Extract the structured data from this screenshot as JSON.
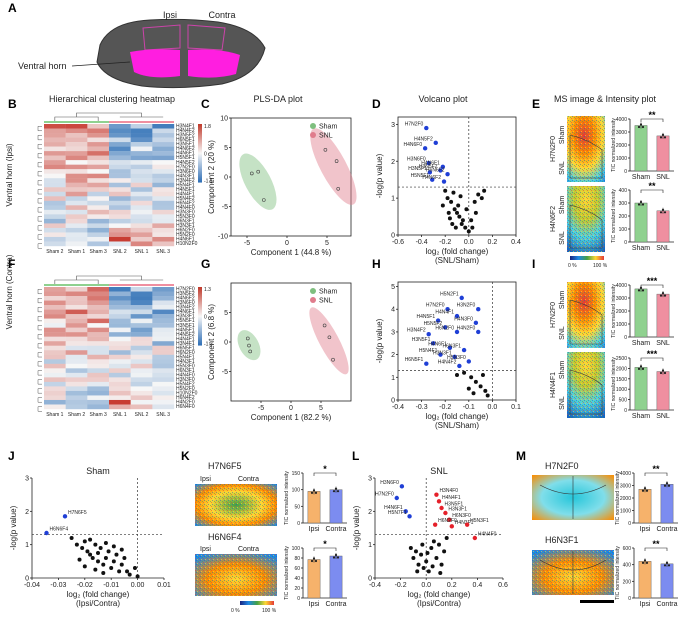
{
  "figure": {
    "panel_labels": [
      "A",
      "B",
      "C",
      "D",
      "E",
      "F",
      "G",
      "H",
      "I",
      "J",
      "K",
      "L",
      "M"
    ],
    "panel_a": {
      "ipsi": "Ipsi",
      "contra": "Contra",
      "region": "Ventral horn"
    },
    "titles": {
      "heatmap": "Hierarchical clustering heatmap",
      "plsda": "PLS-DA plot",
      "volcano": "Volcano plot",
      "ms": "MS image & Intensity plot"
    },
    "row_labels": {
      "ipsi": "Ventral horn (Ipsi)",
      "contra": "Ventral horn (Contra)"
    },
    "legend": {
      "sham": "Sham",
      "snl": "SNL",
      "ipsi": "Ipsi",
      "contra": "Contra"
    },
    "axes": {
      "y_tic": "TIC normalized intensity",
      "y_logp": "-log(p value)",
      "x_fc_main": "log₂ (fold change)",
      "x_snl_sham": "(SNL/Sham)",
      "x_ipsi_contra": "(Ipsi/Contra)"
    },
    "scale": {
      "min": "0 %",
      "max": "100 %"
    },
    "j_title": "Sham",
    "l_title": "SNL",
    "glycan_labels": {
      "e1": "H7N2F0",
      "e2": "H4N6F2",
      "i1": "H7N2F0",
      "i2": "H4N4F1",
      "k1": "H7N6F5",
      "k2": "H6N6F4",
      "m1": "H7N2F0",
      "m2": "H6N3F1"
    }
  },
  "chart_data": [
    {
      "id": "B",
      "type": "heatmap",
      "title": "Hierarchical clustering heatmap",
      "columns": [
        "Sham 2",
        "Sham 1",
        "Sham 3",
        "SNL 2",
        "SNL 1",
        "SNL 3"
      ],
      "rows": [
        "H3N4F1",
        "H4N4F2",
        "H3N5F2",
        "H6N5F1",
        "H3N5F1",
        "H4N6F2",
        "H4N6F1",
        "H5N5F1",
        "H4N5F2",
        "H7N2F0",
        "H3N6F0",
        "H4N3F1",
        "H3N4F2",
        "H5N4F1",
        "H4N5F1",
        "H4N4F1",
        "H5N4F2",
        "H6N4F2",
        "H4N4F0",
        "H3N3F0",
        "H5N3F0",
        "H6N3F1",
        "H3N3F1",
        "H6N2F0",
        "H5N2F0",
        "H4N6F1",
        "H10N2F0"
      ],
      "colorbar": {
        "max": "1.8",
        "mid": "0",
        "min": "-1.5"
      }
    },
    {
      "id": "F",
      "type": "heatmap",
      "columns": [
        "Sham 1",
        "Sham 2",
        "Sham 3",
        "SNL 1",
        "SNL 2",
        "SNL 3"
      ],
      "rows": [
        "H7N2F0",
        "H3N5F2",
        "H4N6F2",
        "H3N6F0",
        "H3N4F2",
        "H4N6F1",
        "H3N3F1",
        "H5N5F1",
        "H3N5F1",
        "H4N5F1",
        "H4N5F2",
        "H4N4F1",
        "H3N4F1",
        "H6N5F1",
        "H6N2F0",
        "H5N4F1",
        "H4N3F1",
        "H5N3F0",
        "H6N3F1",
        "H4N4F0",
        "H3N3F0",
        "H5N4F2",
        "H5N2F0",
        "H10N2F0",
        "H6N4F2",
        "H4N2F0",
        "H6N4F0"
      ],
      "colorbar": {
        "max": "1.3",
        "mid": "0",
        "min": "-1.3"
      }
    },
    {
      "id": "C",
      "type": "scatter",
      "title": "PLS-DA plot",
      "xlabel": "Component 1 (44.8 %)",
      "ylabel": "Component 2 (20 %)",
      "xlim": [
        -7,
        8
      ],
      "ylim": [
        -10,
        10
      ],
      "xticks": [
        -5,
        0,
        5
      ],
      "yticks": [
        -10,
        -5,
        0,
        5,
        10
      ],
      "series": [
        {
          "name": "Sham",
          "color": "#7fbf7f",
          "x": [
            -4.4,
            -3.6,
            -2.9
          ],
          "y": [
            0.6,
            0.9,
            -3.9
          ]
        },
        {
          "name": "SNL",
          "color": "#e07c8c",
          "x": [
            4.8,
            6.2,
            6.4
          ],
          "y": [
            4.6,
            2.7,
            -2.0
          ]
        }
      ]
    },
    {
      "id": "G",
      "type": "scatter",
      "xlabel": "Component 1 (82.2 %)",
      "ylabel": "Component 2 (6.8 %)",
      "xlim": [
        -10,
        10
      ],
      "ylim": [
        -10,
        10
      ],
      "xticks": [
        -5,
        0,
        5
      ],
      "yticks": [
        -5,
        0,
        5
      ],
      "series": [
        {
          "name": "Sham",
          "color": "#7fbf7f",
          "x": [
            -7.2,
            -7.0,
            -6.8
          ],
          "y": [
            0.6,
            -0.6,
            -1.6
          ]
        },
        {
          "name": "SNL",
          "color": "#e07c8c",
          "x": [
            5.6,
            6.4,
            7.0
          ],
          "y": [
            2.8,
            0.8,
            -3.0
          ]
        }
      ]
    },
    {
      "id": "D",
      "type": "scatter",
      "title": "Volcano plot",
      "xlabel": "log₂ (fold change)",
      "ylabel": "-log(p value)",
      "xlim": [
        -0.6,
        0.4
      ],
      "ylim": [
        0,
        3.2
      ],
      "xticks": [
        -0.6,
        -0.4,
        -0.2,
        0.0,
        0.2,
        0.4
      ],
      "yticks": [
        0,
        1,
        2,
        3
      ],
      "threshold_y": 1.3,
      "significant": [
        {
          "label": "H7N2F0",
          "x": -0.36,
          "y": 2.9
        },
        {
          "label": "H4N5F2",
          "x": -0.28,
          "y": 2.5
        },
        {
          "label": "H4N6F0",
          "x": -0.37,
          "y": 2.35
        },
        {
          "label": "H3N6F0",
          "x": -0.34,
          "y": 1.95
        },
        {
          "label": "H4N6F1",
          "x": -0.22,
          "y": 1.85
        },
        {
          "label": "H3N5F2",
          "x": -0.24,
          "y": 1.75
        },
        {
          "label": "H3N5F1",
          "x": -0.33,
          "y": 1.7
        },
        {
          "label": "H6N6F2",
          "x": -0.18,
          "y": 1.65
        },
        {
          "label": "H5N5F1",
          "x": -0.31,
          "y": 1.5
        },
        {
          "label": "H4N6F2",
          "x": -0.21,
          "y": 1.45
        }
      ],
      "other": [
        [
          -0.2,
          1.2
        ],
        [
          -0.18,
          1.0
        ],
        [
          -0.15,
          0.9
        ],
        [
          -0.12,
          0.7
        ],
        [
          -0.1,
          0.6
        ],
        [
          -0.08,
          0.5
        ],
        [
          -0.05,
          0.4
        ],
        [
          -0.03,
          0.2
        ],
        [
          0.0,
          0.1
        ],
        [
          -0.22,
          0.8
        ],
        [
          -0.17,
          0.6
        ],
        [
          -0.14,
          0.3
        ],
        [
          -0.09,
          0.8
        ],
        [
          -0.06,
          0.3
        ],
        [
          0.02,
          0.4
        ],
        [
          0.05,
          0.9
        ],
        [
          0.08,
          1.1
        ],
        [
          0.11,
          1.0
        ],
        [
          0.13,
          1.2
        ],
        [
          -0.11,
          0.2
        ],
        [
          -0.02,
          0.7
        ],
        [
          0.03,
          0.2
        ],
        [
          -0.16,
          0.45
        ],
        [
          -0.07,
          1.05
        ],
        [
          -0.13,
          1.15
        ],
        [
          0.06,
          0.6
        ]
      ]
    },
    {
      "id": "H",
      "type": "scatter",
      "xlabel": "log₂ (fold change)",
      "ylabel": "-log(p value)",
      "xlim": [
        -0.4,
        0.1
      ],
      "ylim": [
        0,
        5.2
      ],
      "xticks": [
        -0.4,
        -0.3,
        -0.2,
        -0.1,
        0.0,
        0.1
      ],
      "yticks": [
        0,
        1,
        2,
        3,
        4,
        5
      ],
      "threshold_y": 1.3,
      "significant": [
        {
          "label": "H5N2F1",
          "x": -0.13,
          "y": 4.5
        },
        {
          "label": "H7N2F0",
          "x": -0.19,
          "y": 4.0
        },
        {
          "label": "H3N2F0",
          "x": -0.06,
          "y": 4.0
        },
        {
          "label": "H4N4F1",
          "x": -0.15,
          "y": 3.7
        },
        {
          "label": "H4N5F1",
          "x": -0.23,
          "y": 3.5
        },
        {
          "label": "H4N3F0",
          "x": -0.07,
          "y": 3.4
        },
        {
          "label": "H5N5F2",
          "x": -0.2,
          "y": 3.2
        },
        {
          "label": "H6N2F0",
          "x": -0.15,
          "y": 3.0
        },
        {
          "label": "H3N4F2",
          "x": -0.27,
          "y": 2.9
        },
        {
          "label": "H4N2F0",
          "x": -0.06,
          "y": 3.0
        },
        {
          "label": "H3N5F1",
          "x": -0.25,
          "y": 2.5
        },
        {
          "label": "H4N6F1",
          "x": -0.18,
          "y": 2.3
        },
        {
          "label": "H6N3F1",
          "x": -0.12,
          "y": 2.2
        },
        {
          "label": "H5N4F1",
          "x": -0.22,
          "y": 2.0
        },
        {
          "label": "H3N3F1",
          "x": -0.16,
          "y": 1.9
        },
        {
          "label": "H5N3F0",
          "x": -0.1,
          "y": 1.7
        },
        {
          "label": "H6N5F1",
          "x": -0.28,
          "y": 1.6
        },
        {
          "label": "H4N4F2",
          "x": -0.14,
          "y": 1.5
        }
      ],
      "other": [
        [
          -0.12,
          1.2
        ],
        [
          -0.09,
          1.0
        ],
        [
          -0.07,
          0.8
        ],
        [
          -0.05,
          0.6
        ],
        [
          -0.03,
          0.4
        ],
        [
          -0.02,
          0.2
        ],
        [
          -0.15,
          1.1
        ],
        [
          -0.1,
          0.5
        ],
        [
          -0.04,
          1.1
        ],
        [
          -0.08,
          0.3
        ]
      ]
    },
    {
      "id": "J",
      "type": "scatter",
      "title": "Sham",
      "xlabel": "log₂ (fold change)",
      "ylabel": "-log(p value)",
      "xlim": [
        -0.04,
        0.01
      ],
      "ylim": [
        0,
        3
      ],
      "xticks": [
        -0.04,
        -0.03,
        -0.02,
        -0.01,
        0.0,
        0.01
      ],
      "yticks": [
        0,
        1,
        2,
        3
      ],
      "threshold_y": 1.3,
      "significant": [
        {
          "label": "H7N6F5",
          "x": -0.0275,
          "y": 1.85
        },
        {
          "label": "H6N6F4",
          "x": -0.0345,
          "y": 1.35
        }
      ],
      "other": [
        [
          -0.025,
          1.2
        ],
        [
          -0.023,
          1.0
        ],
        [
          -0.021,
          0.9
        ],
        [
          -0.02,
          1.1
        ],
        [
          -0.019,
          0.8
        ],
        [
          -0.018,
          0.7
        ],
        [
          -0.017,
          0.6
        ],
        [
          -0.016,
          1.0
        ],
        [
          -0.015,
          0.5
        ],
        [
          -0.014,
          0.9
        ],
        [
          -0.013,
          0.4
        ],
        [
          -0.012,
          0.6
        ],
        [
          -0.011,
          0.8
        ],
        [
          -0.01,
          0.3
        ],
        [
          -0.009,
          0.5
        ],
        [
          -0.008,
          0.7
        ],
        [
          -0.007,
          0.2
        ],
        [
          -0.006,
          0.4
        ],
        [
          -0.005,
          0.6
        ],
        [
          -0.004,
          0.2
        ],
        [
          -0.003,
          0.1
        ],
        [
          -0.001,
          0.3
        ],
        [
          0.0,
          0.05
        ],
        [
          -0.018,
          1.15
        ],
        [
          -0.015,
          0.75
        ],
        [
          -0.012,
          1.05
        ],
        [
          -0.022,
          0.55
        ],
        [
          -0.009,
          0.95
        ],
        [
          -0.013,
          0.15
        ],
        [
          -0.006,
          0.85
        ],
        [
          -0.02,
          0.35
        ],
        [
          -0.016,
          0.25
        ]
      ]
    },
    {
      "id": "L",
      "type": "scatter",
      "title": "SNL",
      "xlabel": "log₂ (fold change)",
      "ylabel": "-log(p value)",
      "xlim": [
        -0.4,
        0.6
      ],
      "ylim": [
        0,
        3
      ],
      "xticks": [
        -0.4,
        -0.2,
        0.0,
        0.2,
        0.4,
        0.6
      ],
      "yticks": [
        0,
        1,
        2,
        3
      ],
      "threshold_y": 1.3,
      "significant_down": [
        {
          "label": "H3N6F0",
          "x": -0.19,
          "y": 2.75
        },
        {
          "label": "H7N2F0",
          "x": -0.23,
          "y": 2.4
        },
        {
          "label": "H4N6F1",
          "x": -0.16,
          "y": 2.0
        },
        {
          "label": "H5N7F1",
          "x": -0.13,
          "y": 1.85
        }
      ],
      "significant_up": [
        {
          "label": "H3N4F0",
          "x": 0.08,
          "y": 2.5
        },
        {
          "label": "H4N4F1",
          "x": 0.1,
          "y": 2.3
        },
        {
          "label": "H3N5F1",
          "x": 0.12,
          "y": 2.1
        },
        {
          "label": "H3N3F1",
          "x": 0.15,
          "y": 1.95
        },
        {
          "label": "H6N3F0",
          "x": 0.18,
          "y": 1.75
        },
        {
          "label": "H6N2F0",
          "x": 0.07,
          "y": 1.6
        },
        {
          "label": "H4N3F1",
          "x": 0.2,
          "y": 1.55
        },
        {
          "label": "H5N3F1",
          "x": 0.32,
          "y": 1.6
        },
        {
          "label": "H4N4F0",
          "x": 0.38,
          "y": 1.2
        }
      ],
      "other": [
        [
          -0.12,
          0.9
        ],
        [
          -0.1,
          0.6
        ],
        [
          -0.08,
          0.8
        ],
        [
          -0.06,
          0.4
        ],
        [
          -0.04,
          0.7
        ],
        [
          -0.02,
          0.3
        ],
        [
          0.0,
          0.5
        ],
        [
          0.02,
          0.2
        ],
        [
          0.04,
          0.9
        ],
        [
          0.06,
          1.1
        ],
        [
          0.08,
          0.6
        ],
        [
          0.1,
          1.0
        ],
        [
          0.12,
          0.4
        ],
        [
          0.14,
          0.8
        ],
        [
          0.16,
          1.2
        ],
        [
          0.05,
          0.35
        ],
        [
          -0.03,
          1.0
        ],
        [
          0.01,
          0.75
        ],
        [
          0.11,
          0.15
        ],
        [
          -0.07,
          0.2
        ]
      ]
    },
    {
      "id": "E1",
      "type": "bar",
      "categories": [
        "Sham",
        "SNL"
      ],
      "values": [
        3500,
        2700
      ],
      "ylim": [
        0,
        4000
      ],
      "yticks": [
        0,
        1000,
        2000,
        3000,
        4000
      ],
      "significance": "**",
      "colors": [
        "#8fd18f",
        "#ef8fa0"
      ]
    },
    {
      "id": "E2",
      "type": "bar",
      "categories": [
        "Sham",
        "SNL"
      ],
      "values": [
        300,
        240
      ],
      "ylim": [
        0,
        400
      ],
      "yticks": [
        0,
        100,
        200,
        300,
        400
      ],
      "significance": "**",
      "colors": [
        "#8fd18f",
        "#ef8fa0"
      ]
    },
    {
      "id": "I1",
      "type": "bar",
      "categories": [
        "Sham",
        "SNL"
      ],
      "values": [
        3700,
        3300
      ],
      "ylim": [
        0,
        4000
      ],
      "yticks": [
        0,
        1000,
        2000,
        3000,
        4000
      ],
      "significance": "***",
      "colors": [
        "#8fd18f",
        "#ef8fa0"
      ]
    },
    {
      "id": "I2",
      "type": "bar",
      "categories": [
        "Sham",
        "SNL"
      ],
      "values": [
        2050,
        1850
      ],
      "ylim": [
        0,
        2500
      ],
      "yticks": [
        0,
        500,
        1000,
        1500,
        2000,
        2500
      ],
      "significance": "***",
      "colors": [
        "#8fd18f",
        "#ef8fa0"
      ]
    },
    {
      "id": "K1",
      "type": "bar",
      "categories": [
        "Ipsi",
        "Contra"
      ],
      "values": [
        95,
        100
      ],
      "ylim": [
        0,
        150
      ],
      "yticks": [
        0,
        50,
        100,
        150
      ],
      "significance": "*",
      "colors": [
        "#f6b26b",
        "#7c8cf0"
      ]
    },
    {
      "id": "K2",
      "type": "bar",
      "categories": [
        "Ipsi",
        "Contra"
      ],
      "values": [
        77,
        84
      ],
      "ylim": [
        0,
        100
      ],
      "yticks": [
        0,
        20,
        40,
        60,
        80,
        100
      ],
      "significance": "*",
      "colors": [
        "#f6b26b",
        "#7c8cf0"
      ]
    },
    {
      "id": "M1",
      "type": "bar",
      "categories": [
        "Ipsi",
        "Contra"
      ],
      "values": [
        2700,
        3100
      ],
      "ylim": [
        0,
        4000
      ],
      "yticks": [
        0,
        1000,
        2000,
        3000,
        4000
      ],
      "significance": "**",
      "colors": [
        "#f6b26b",
        "#7c8cf0"
      ]
    },
    {
      "id": "M2",
      "type": "bar",
      "categories": [
        "Ipsi",
        "Contra"
      ],
      "values": [
        440,
        410
      ],
      "ylim": [
        0,
        600
      ],
      "yticks": [
        0,
        200,
        400,
        600
      ],
      "significance": "**",
      "colors": [
        "#f6b26b",
        "#7c8cf0"
      ]
    }
  ]
}
